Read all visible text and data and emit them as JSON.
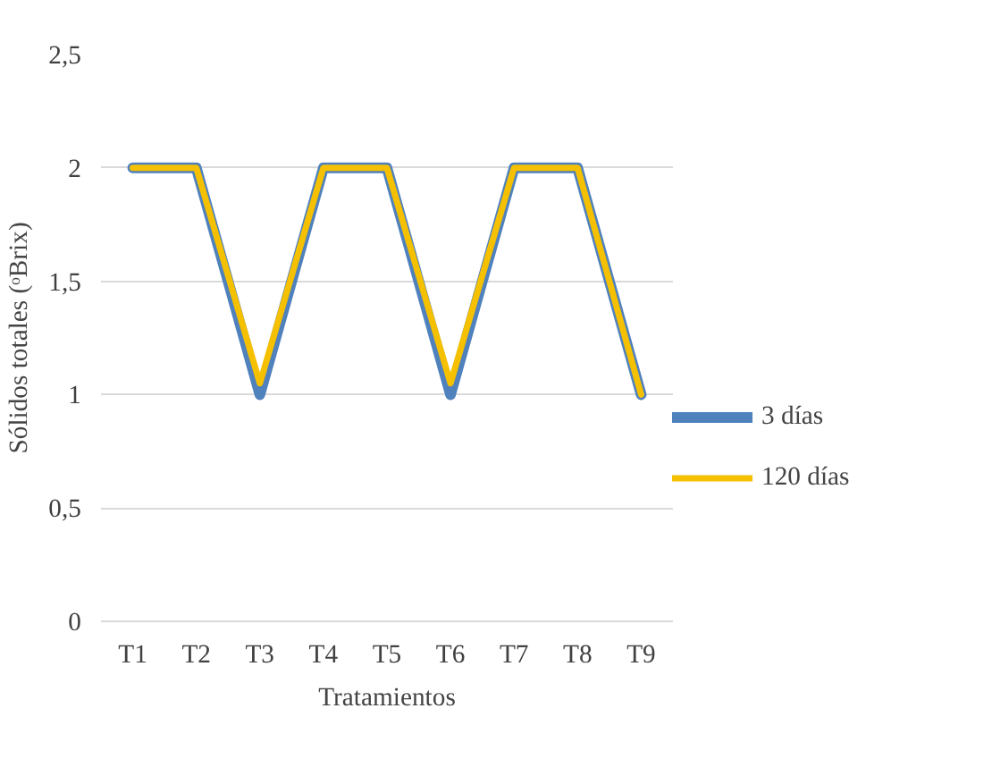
{
  "chart_data": {
    "type": "line",
    "xlabel": "Tratamientos",
    "ylabel": "Sólidos totales (ᵒBrix)",
    "categories": [
      "T1",
      "T2",
      "T3",
      "T4",
      "T5",
      "T6",
      "T7",
      "T8",
      "T9"
    ],
    "series": [
      {
        "name": "3 días",
        "color": "#4f81bd",
        "values": [
          2,
          2,
          1,
          2,
          2,
          1,
          2,
          2,
          1
        ]
      },
      {
        "name": "120 días",
        "color": "#f5c000",
        "values": [
          2,
          2,
          1.05,
          2,
          2,
          1.05,
          2,
          2,
          1
        ]
      }
    ],
    "ylim": [
      0,
      2.5
    ],
    "yticks": [
      {
        "value": 0,
        "label": "0"
      },
      {
        "value": 0.5,
        "label": "0,5"
      },
      {
        "value": 1,
        "label": "1"
      },
      {
        "value": 1.5,
        "label": "1,5"
      },
      {
        "value": 2,
        "label": "2"
      },
      {
        "value": 2.5,
        "label": "2,5"
      }
    ],
    "grid": "y",
    "legend": "right",
    "marker": "none",
    "line_style": "solid"
  }
}
